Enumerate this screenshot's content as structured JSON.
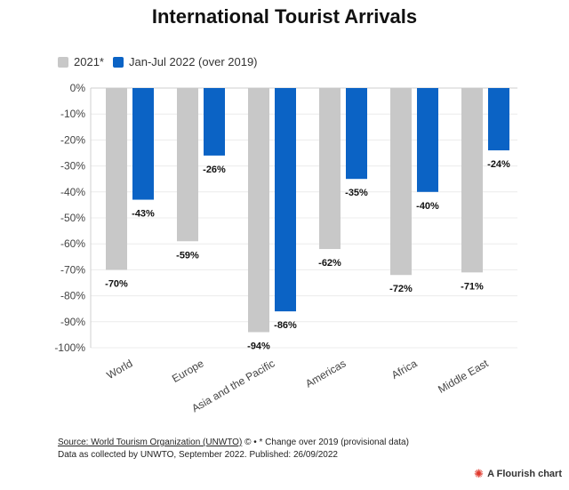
{
  "title": "International Tourist Arrivals",
  "chart_data": {
    "type": "bar",
    "categories": [
      "World",
      "Europe",
      "Asia and the Pacific",
      "Americas",
      "Africa",
      "Middle East"
    ],
    "series": [
      {
        "name": "2021*",
        "color": "#c8c8c8",
        "values": [
          -70,
          -59,
          -94,
          -62,
          -72,
          -71
        ]
      },
      {
        "name": "Jan-Jul 2022 (over 2019)",
        "color": "#0b63c5",
        "values": [
          -43,
          -26,
          -86,
          -35,
          -40,
          -24
        ]
      }
    ],
    "ylim": [
      -100,
      0
    ],
    "yticks": [
      0,
      -10,
      -20,
      -30,
      -40,
      -50,
      -60,
      -70,
      -80,
      -90,
      -100
    ],
    "ytick_suffix": "%",
    "label_suffix": "%",
    "grid": true,
    "legend_position": "top-left"
  },
  "footer": {
    "source_link": "Source: World Tourism Organization (UNWTO)",
    "source_icon": "©",
    "source_note": " • * Change over 2019 (provisional data)",
    "line2": "Data as collected by UNWTO, September 2022. Published: 26/09/2022"
  },
  "brand": "A Flourish chart"
}
